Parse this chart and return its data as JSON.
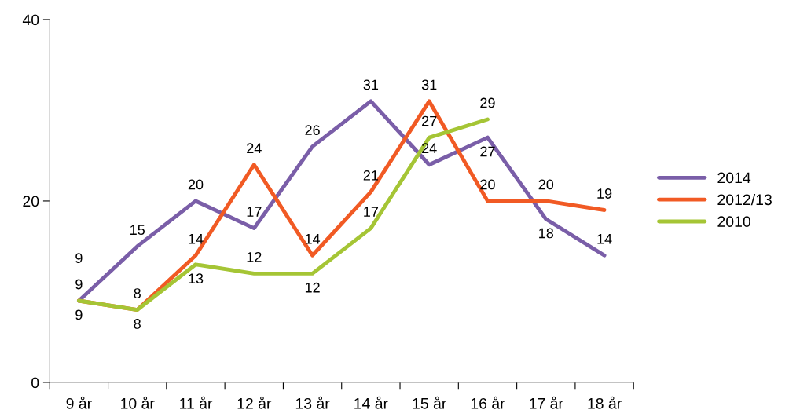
{
  "chart_data": {
    "type": "line",
    "categories": [
      "9 år",
      "10 år",
      "11 år",
      "12 år",
      "13 år",
      "14 år",
      "15 år",
      "16 år",
      "17 år",
      "18 år"
    ],
    "series": [
      {
        "name": "2014",
        "color": "#7a5ea8",
        "values": [
          9,
          15,
          20,
          17,
          26,
          31,
          24,
          27,
          18,
          14
        ]
      },
      {
        "name": "2012/13",
        "color": "#f15a24",
        "values": [
          9,
          8,
          14,
          24,
          14,
          21,
          31,
          20,
          20,
          19
        ]
      },
      {
        "name": "2010",
        "color": "#a5c535",
        "values": [
          9,
          8,
          13,
          12,
          12,
          17,
          27,
          29,
          null,
          null
        ]
      }
    ],
    "ylim": [
      0,
      40
    ],
    "yticks": [
      0,
      20,
      40
    ],
    "grid": false,
    "legend": "right",
    "data_labels": true,
    "marker": "none",
    "line_style": "solid"
  }
}
